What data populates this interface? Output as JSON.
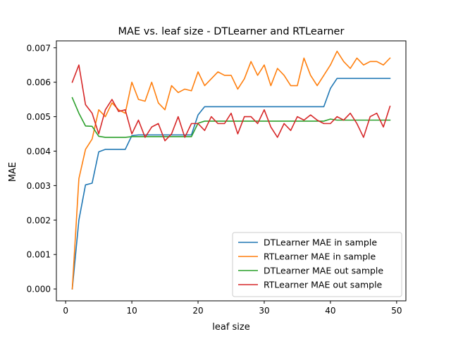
{
  "chart_data": {
    "type": "line",
    "title": "MAE vs. leaf size - DTLearner and RTLearner",
    "xlabel": "leaf size",
    "ylabel": "MAE",
    "xlim": [
      -1.4,
      51.4
    ],
    "ylim": [
      -0.000345,
      0.0072
    ],
    "xticks": [
      0,
      10,
      20,
      30,
      40,
      50
    ],
    "yticks": [
      0.0,
      0.001,
      0.002,
      0.003,
      0.004,
      0.005,
      0.006,
      0.007
    ],
    "ytick_labels": [
      "0.000",
      "0.001",
      "0.002",
      "0.003",
      "0.004",
      "0.005",
      "0.006",
      "0.007"
    ],
    "grid": false,
    "legend_position": "lower-right",
    "x": [
      1,
      2,
      3,
      4,
      5,
      6,
      7,
      8,
      9,
      10,
      11,
      12,
      13,
      14,
      15,
      16,
      17,
      18,
      19,
      20,
      21,
      22,
      23,
      24,
      25,
      26,
      27,
      28,
      29,
      30,
      31,
      32,
      33,
      34,
      35,
      36,
      37,
      38,
      39,
      40,
      41,
      42,
      43,
      44,
      45,
      46,
      47,
      48,
      49
    ],
    "series": [
      {
        "name": "DTLearner MAE in sample",
        "color": "#1f77b4",
        "values": [
          0.0,
          0.002,
          0.00302,
          0.00307,
          0.00398,
          0.00405,
          0.00405,
          0.00405,
          0.00405,
          0.00445,
          0.00447,
          0.00447,
          0.00447,
          0.00447,
          0.00447,
          0.00447,
          0.00447,
          0.00447,
          0.00447,
          0.00505,
          0.00529,
          0.00529,
          0.00529,
          0.00529,
          0.00529,
          0.00529,
          0.00529,
          0.00529,
          0.00529,
          0.00529,
          0.00529,
          0.00529,
          0.00529,
          0.00529,
          0.00529,
          0.00529,
          0.00529,
          0.00529,
          0.00529,
          0.00582,
          0.00611,
          0.00611,
          0.00611,
          0.00611,
          0.00611,
          0.00611,
          0.00611,
          0.00611,
          0.00611
        ]
      },
      {
        "name": "RTLearner MAE in sample",
        "color": "#ff7f0e",
        "values": [
          0.0,
          0.0032,
          0.00405,
          0.00435,
          0.0052,
          0.005,
          0.0054,
          0.0052,
          0.0051,
          0.006,
          0.0055,
          0.00545,
          0.006,
          0.0054,
          0.0052,
          0.0059,
          0.0057,
          0.0058,
          0.00575,
          0.0063,
          0.0059,
          0.0061,
          0.0063,
          0.0062,
          0.0062,
          0.0058,
          0.0061,
          0.0066,
          0.0062,
          0.0065,
          0.0059,
          0.0064,
          0.0062,
          0.0059,
          0.0059,
          0.0067,
          0.0062,
          0.0059,
          0.0062,
          0.0065,
          0.0069,
          0.0066,
          0.0064,
          0.0067,
          0.0065,
          0.0066,
          0.0066,
          0.0065,
          0.0067
        ]
      },
      {
        "name": "DTLearner MAE out sample",
        "color": "#2ca02c",
        "values": [
          0.00555,
          0.0051,
          0.00473,
          0.00472,
          0.00443,
          0.0044,
          0.0044,
          0.0044,
          0.0044,
          0.00442,
          0.00442,
          0.00442,
          0.00442,
          0.00442,
          0.00442,
          0.00442,
          0.00442,
          0.00442,
          0.00442,
          0.00481,
          0.00487,
          0.00487,
          0.00487,
          0.00487,
          0.00487,
          0.00487,
          0.00487,
          0.00487,
          0.00487,
          0.00487,
          0.00487,
          0.00487,
          0.00487,
          0.00487,
          0.00487,
          0.00487,
          0.00487,
          0.00487,
          0.00487,
          0.00493,
          0.0049,
          0.0049,
          0.0049,
          0.0049,
          0.0049,
          0.0049,
          0.0049,
          0.0049,
          0.0049
        ]
      },
      {
        "name": "RTLearner MAE out sample",
        "color": "#d62728",
        "values": [
          0.006,
          0.0065,
          0.00535,
          0.0051,
          0.0045,
          0.0052,
          0.0055,
          0.00515,
          0.0052,
          0.0045,
          0.0049,
          0.0044,
          0.0047,
          0.0048,
          0.0043,
          0.0045,
          0.005,
          0.0044,
          0.0048,
          0.0048,
          0.0046,
          0.005,
          0.0048,
          0.0048,
          0.0051,
          0.0045,
          0.005,
          0.005,
          0.0048,
          0.0052,
          0.0047,
          0.0044,
          0.0048,
          0.0046,
          0.005,
          0.0049,
          0.00505,
          0.0049,
          0.0048,
          0.0048,
          0.005,
          0.0049,
          0.0051,
          0.0048,
          0.0044,
          0.005,
          0.0051,
          0.0047,
          0.0053
        ]
      }
    ]
  }
}
